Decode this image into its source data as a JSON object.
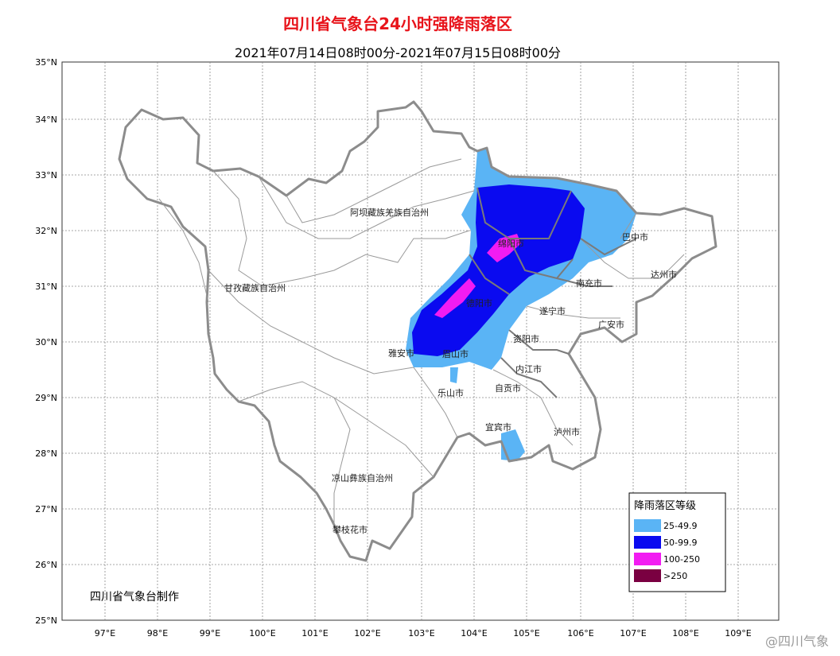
{
  "title": "四川省气象台24小时强降雨落区",
  "subtitle": "2021年07月14日08时00分-2021年07月15日08时00分",
  "lat_labels": [
    "35°N",
    "34°N",
    "33°N",
    "32°N",
    "31°N",
    "30°N",
    "29°N",
    "28°N",
    "27°N",
    "26°N",
    "25°N"
  ],
  "lon_labels": [
    "97°E",
    "98°E",
    "99°E",
    "100°E",
    "101°E",
    "102°E",
    "103°E",
    "104°E",
    "105°E",
    "106°E",
    "107°E",
    "108°E",
    "109°E"
  ],
  "regions": [
    "阿坝藏族羌族自治州",
    "甘孜藏族自治州",
    "凉山彝族自治州",
    "攀枝花市",
    "雅安市",
    "眉山市",
    "乐山市",
    "资阳市",
    "内江市",
    "自贡市",
    "宜宾市",
    "泸州市",
    "遂宁市",
    "南充市",
    "广安市",
    "巴中市",
    "达州市",
    "绵阳市",
    "德阳市"
  ],
  "legend": {
    "title": "降雨落区等级",
    "items": [
      {
        "label": "25-49.9",
        "color": "#5ab4f5"
      },
      {
        "label": "50-99.9",
        "color": "#0a0af0"
      },
      {
        "label": "100-250",
        "color": "#f21cf2"
      },
      {
        "label": ">250",
        "color": "#7a0041"
      }
    ]
  },
  "producer": "四川省气象台制作",
  "watermark": "@四川气象"
}
